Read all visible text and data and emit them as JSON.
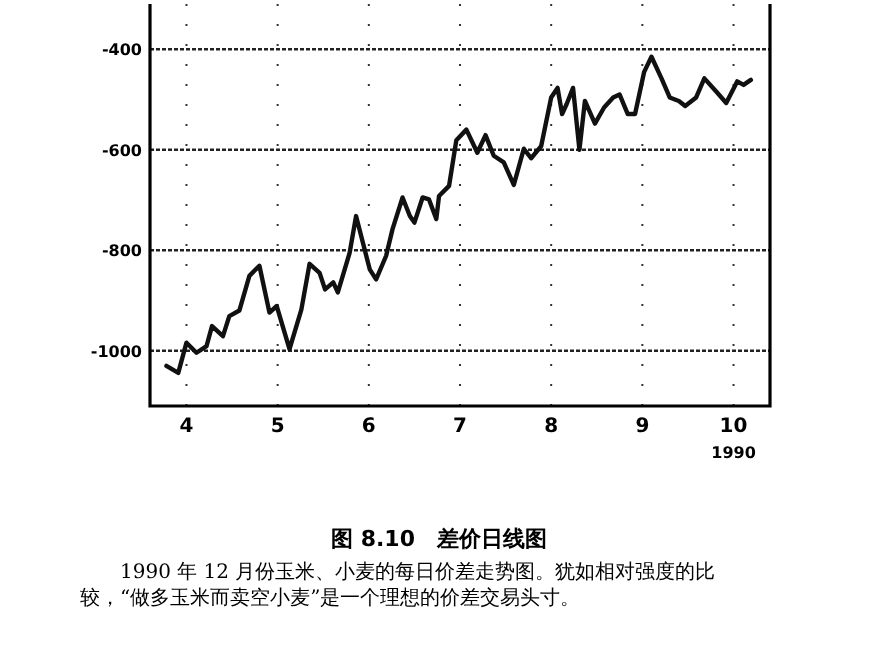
{
  "chart_data": {
    "type": "line",
    "title": "图 8.10　差价日线图",
    "annotations": [
      "1990",
      "1990 年 12 月份玉米、小麦的每日价差走势图。犹如相对强度的比较，“做多玉米而卖空小麦”是一个理想的价差交易头寸。"
    ],
    "xlim": [
      3.6,
      10.4
    ],
    "xticks": [
      4,
      5,
      6,
      7,
      8,
      9,
      10
    ],
    "ylim": [
      -1110,
      -310
    ],
    "yticks": [
      -1000,
      -800,
      -600,
      -400
    ],
    "grid": true,
    "line_style": "solid",
    "marker": "none",
    "series": [
      {
        "color": "#111111",
        "x": [
          3.78,
          3.91,
          4.0,
          4.11,
          4.22,
          4.28,
          4.4,
          4.47,
          4.58,
          4.69,
          4.8,
          4.91,
          4.99,
          5.13,
          5.26,
          5.35,
          5.46,
          5.52,
          5.61,
          5.66,
          5.79,
          5.86,
          6.01,
          6.08,
          6.19,
          6.26,
          6.37,
          6.45,
          6.5,
          6.59,
          6.66,
          6.74,
          6.77,
          6.88,
          6.96,
          7.07,
          7.19,
          7.28,
          7.37,
          7.48,
          7.59,
          7.7,
          7.78,
          7.89,
          8.0,
          8.07,
          8.12,
          8.17,
          8.24,
          8.31,
          8.37,
          8.48,
          8.58,
          8.68,
          8.75,
          8.84,
          8.92,
          9.02,
          9.1,
          9.21,
          9.3,
          9.4,
          9.47,
          9.59,
          9.68,
          9.81,
          9.92,
          10.04,
          10.11,
          10.19
        ],
        "values": [
          -1030,
          -1044,
          -984,
          -1004,
          -991,
          -951,
          -971,
          -931,
          -920,
          -851,
          -831,
          -924,
          -911,
          -997,
          -918,
          -827,
          -845,
          -878,
          -864,
          -884,
          -805,
          -732,
          -838,
          -858,
          -811,
          -758,
          -695,
          -732,
          -745,
          -695,
          -699,
          -738,
          -692,
          -672,
          -581,
          -560,
          -606,
          -571,
          -612,
          -625,
          -670,
          -598,
          -617,
          -593,
          -496,
          -477,
          -529,
          -509,
          -477,
          -600,
          -503,
          -548,
          -516,
          -496,
          -490,
          -529,
          -529,
          -445,
          -415,
          -458,
          -496,
          -503,
          -513,
          -496,
          -458,
          -484,
          -507,
          -464,
          -471,
          -461
        ]
      }
    ]
  }
}
